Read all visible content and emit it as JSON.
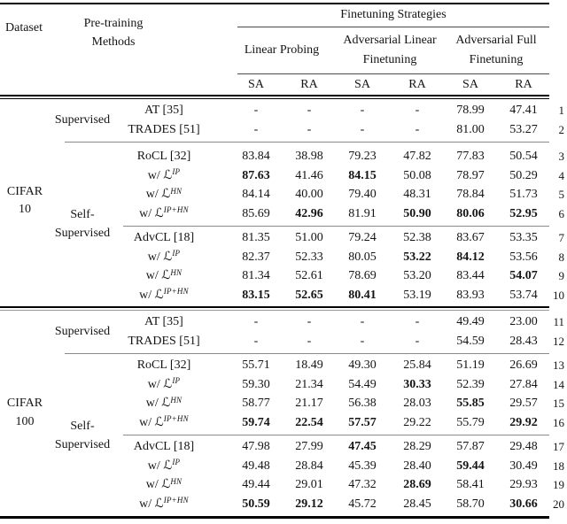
{
  "colors": {
    "background": "#ffffff",
    "text": "#141414",
    "rule_dark": "#000000",
    "rule_medium": "#4a4a4a",
    "rule_light": "#8a8a8a"
  },
  "header": {
    "dataset": "Dataset",
    "pretraining_line1": "Pre-training",
    "pretraining_line2": "Methods",
    "title": "Finetuning Strategies",
    "groups": [
      {
        "line1": "Linear Probing",
        "line2": ""
      },
      {
        "line1": "Adversarial Linear",
        "line2": "Finetuning"
      },
      {
        "line1": "Adversarial Full",
        "line2": "Finetuning"
      }
    ],
    "subcols": [
      "SA",
      "RA",
      "SA",
      "RA",
      "SA",
      "RA"
    ]
  },
  "side": {
    "cifar10_line1": "CIFAR",
    "cifar10_line2": "10",
    "cifar100_line1": "CIFAR",
    "cifar100_line2": "100",
    "supervised_1": "Supervised",
    "self_1_line1": "Self-",
    "self_1_line2": "Supervised",
    "supervised_2": "Supervised",
    "self_2_line1": "Self-",
    "self_2_line2": "Supervised"
  },
  "table": {
    "rows": [
      {
        "num": "1",
        "method": "AT [35]",
        "values": [
          "-",
          "-",
          "-",
          "-",
          "78.99",
          "47.41"
        ],
        "bold": []
      },
      {
        "num": "2",
        "method": "TRADES [51]",
        "values": [
          "-",
          "-",
          "-",
          "-",
          "81.00",
          "53.27"
        ],
        "bold": []
      },
      {
        "num": "3",
        "method": "RoCL [32]",
        "values": [
          "83.84",
          "38.98",
          "79.23",
          "47.82",
          "77.83",
          "50.54"
        ],
        "bold": []
      },
      {
        "num": "4",
        "method": "w/",
        "symbol": "ℒ",
        "sup": "IP",
        "values": [
          "87.63",
          "41.46",
          "84.15",
          "50.08",
          "78.97",
          "50.29"
        ],
        "bold": [
          0,
          2
        ]
      },
      {
        "num": "5",
        "method": "w/",
        "symbol": "ℒ",
        "sup": "HN",
        "values": [
          "84.14",
          "40.00",
          "79.40",
          "48.31",
          "78.84",
          "51.73"
        ],
        "bold": []
      },
      {
        "num": "6",
        "method": "w/",
        "symbol": "ℒ",
        "sup": "IP+HN",
        "values": [
          "85.69",
          "42.96",
          "81.91",
          "50.90",
          "80.06",
          "52.95"
        ],
        "bold": [
          1,
          3,
          4,
          5
        ]
      },
      {
        "num": "7",
        "method": "AdvCL [18]",
        "values": [
          "81.35",
          "51.00",
          "79.24",
          "52.38",
          "83.67",
          "53.35"
        ],
        "bold": []
      },
      {
        "num": "8",
        "method": "w/",
        "symbol": "ℒ",
        "sup": "IP",
        "values": [
          "82.37",
          "52.33",
          "80.05",
          "53.22",
          "84.12",
          "53.56"
        ],
        "bold": [
          3,
          4
        ]
      },
      {
        "num": "9",
        "method": "w/",
        "symbol": "ℒ",
        "sup": "HN",
        "values": [
          "81.34",
          "52.61",
          "78.69",
          "53.20",
          "83.44",
          "54.07"
        ],
        "bold": [
          5
        ]
      },
      {
        "num": "10",
        "method": "w/",
        "symbol": "ℒ",
        "sup": "IP+HN",
        "values": [
          "83.15",
          "52.65",
          "80.41",
          "53.19",
          "83.93",
          "53.74"
        ],
        "bold": [
          0,
          1,
          2
        ]
      },
      {
        "num": "11",
        "method": "AT [35]",
        "values": [
          "-",
          "-",
          "-",
          "-",
          "49.49",
          "23.00"
        ],
        "bold": []
      },
      {
        "num": "12",
        "method": "TRADES [51]",
        "values": [
          "-",
          "-",
          "-",
          "-",
          "54.59",
          "28.43"
        ],
        "bold": []
      },
      {
        "num": "13",
        "method": "RoCL [32]",
        "values": [
          "55.71",
          "18.49",
          "49.30",
          "25.84",
          "51.19",
          "26.69"
        ],
        "bold": []
      },
      {
        "num": "14",
        "method": "w/",
        "symbol": "ℒ",
        "sup": "IP",
        "values": [
          "59.30",
          "21.34",
          "54.49",
          "30.33",
          "52.39",
          "27.84"
        ],
        "bold": [
          3
        ]
      },
      {
        "num": "15",
        "method": "w/",
        "symbol": "ℒ",
        "sup": "HN",
        "values": [
          "58.77",
          "21.17",
          "56.38",
          "28.03",
          "55.85",
          "29.57"
        ],
        "bold": [
          4
        ]
      },
      {
        "num": "16",
        "method": "w/",
        "symbol": "ℒ",
        "sup": "IP+HN",
        "values": [
          "59.74",
          "22.54",
          "57.57",
          "29.22",
          "55.79",
          "29.92"
        ],
        "bold": [
          0,
          1,
          2,
          5
        ]
      },
      {
        "num": "17",
        "method": "AdvCL [18]",
        "values": [
          "47.98",
          "27.99",
          "47.45",
          "28.29",
          "57.87",
          "29.48"
        ],
        "bold": [
          2
        ]
      },
      {
        "num": "18",
        "method": "w/",
        "symbol": "ℒ",
        "sup": "IP",
        "values": [
          "49.48",
          "28.84",
          "45.39",
          "28.40",
          "59.44",
          "30.49"
        ],
        "bold": [
          4
        ]
      },
      {
        "num": "19",
        "method": "w/",
        "symbol": "ℒ",
        "sup": "HN",
        "values": [
          "49.44",
          "29.01",
          "47.32",
          "28.69",
          "58.41",
          "29.93"
        ],
        "bold": [
          3
        ]
      },
      {
        "num": "20",
        "method": "w/",
        "symbol": "ℒ",
        "sup": "IP+HN",
        "values": [
          "50.59",
          "29.12",
          "45.72",
          "28.45",
          "58.70",
          "30.66"
        ],
        "bold": [
          0,
          1,
          5
        ]
      }
    ]
  }
}
